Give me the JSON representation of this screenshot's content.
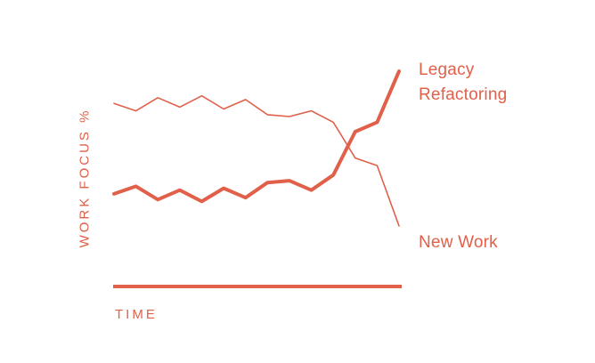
{
  "chart_data": {
    "type": "line",
    "title": "",
    "xlabel": "TIME",
    "ylabel": "WORK FOCUS %",
    "grid": false,
    "legend": "none",
    "x": [
      1,
      2,
      3,
      4,
      5,
      6,
      7,
      8,
      9,
      10,
      11,
      12,
      13,
      14
    ],
    "ylim": [
      0,
      100
    ],
    "series": [
      {
        "name": "Legacy Refactoring",
        "values": [
          34,
          38,
          31,
          36,
          30,
          37,
          32,
          40,
          41,
          36,
          44,
          67,
          72,
          99
        ]
      },
      {
        "name": "New Work",
        "values": [
          82,
          78,
          85,
          80,
          86,
          79,
          84,
          76,
          75,
          78,
          72,
          53,
          49,
          17
        ]
      }
    ],
    "series_styles": [
      {
        "color": "#e0604a",
        "weight": "heavy"
      },
      {
        "color": "#e0604a",
        "weight": "light"
      }
    ]
  },
  "series_labels": {
    "legacy_line1": "Legacy",
    "legacy_line2": "Refactoring",
    "new_work": "New Work"
  },
  "colors": {
    "accent": "#e0604a"
  }
}
